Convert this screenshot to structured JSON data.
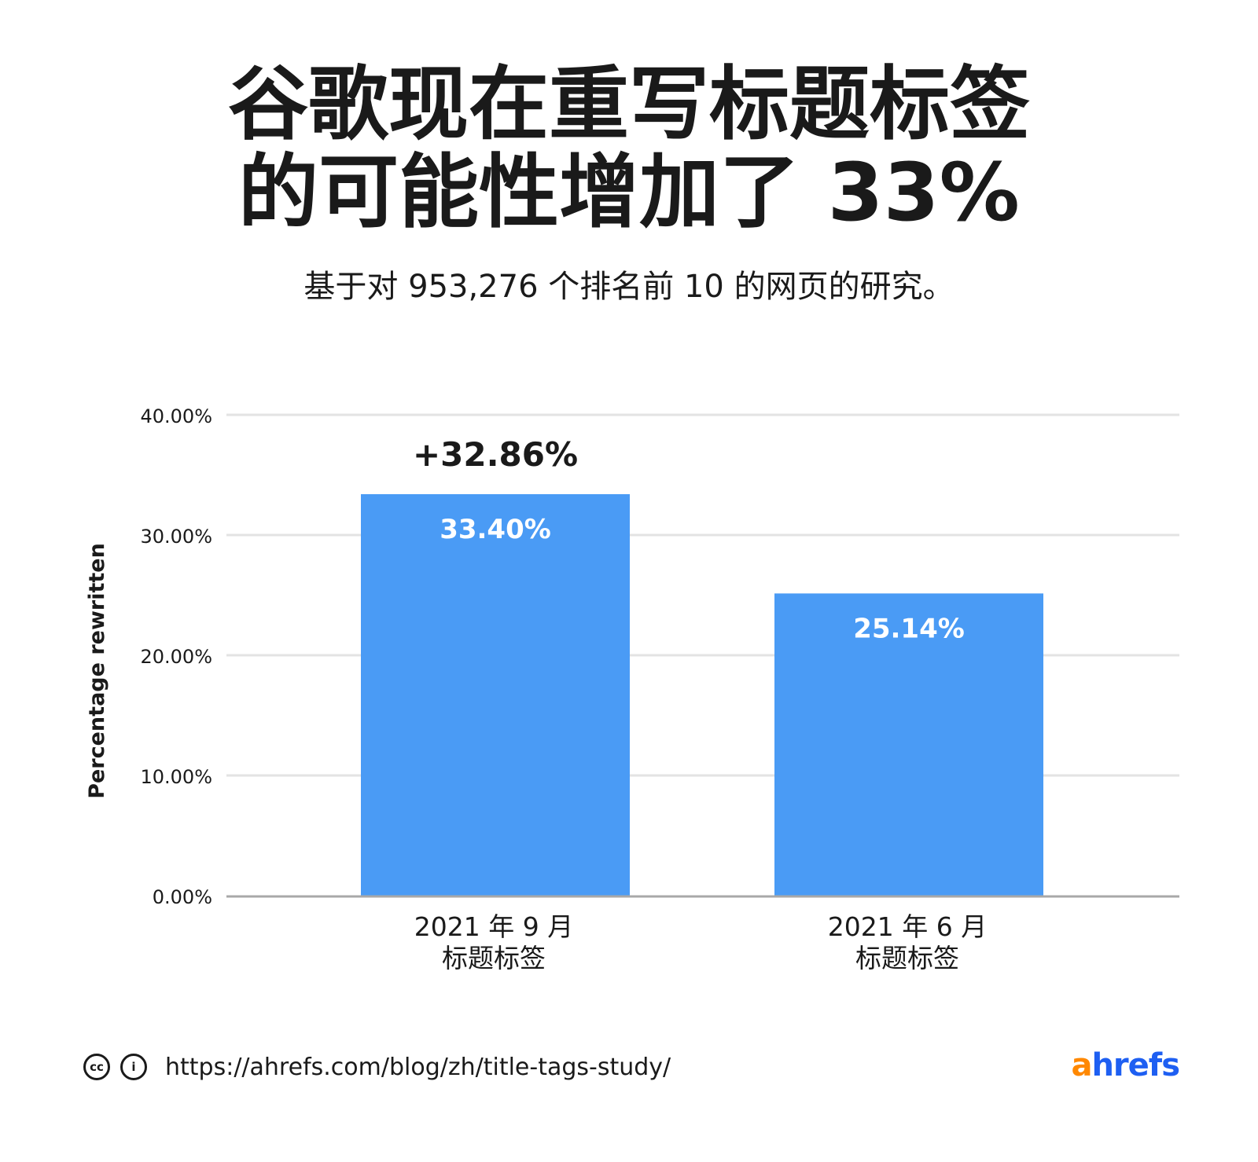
{
  "title_lines": [
    "谷歌现在重写标题标签",
    "的可能性增加了 33%"
  ],
  "subtitle": "基于对 953,276 个排名前 10 的网页的研究。",
  "colors": {
    "bar": "#4a9bf5",
    "grid": "#e3e3e3",
    "axis": "#a8a8a8",
    "text": "#1a1a1a",
    "logo_a": "#ff8800",
    "logo_rest": "#1e5ff2"
  },
  "chart_data": {
    "type": "bar",
    "categories": [
      {
        "line1": "2021 年 9 月",
        "line2": "标题标签"
      },
      {
        "line1": "2021 年 6 月",
        "line2": "标题标签"
      }
    ],
    "values": [
      33.4,
      25.14
    ],
    "value_labels": [
      "33.40%",
      "25.14%"
    ],
    "ylabel": "Percentage rewritten",
    "ylim": [
      0,
      40
    ],
    "yticks": [
      {
        "value": 0,
        "label": "0.00%"
      },
      {
        "value": 10,
        "label": "10.00%"
      },
      {
        "value": 20,
        "label": "20.00%"
      },
      {
        "value": 30,
        "label": "30.00%"
      },
      {
        "value": 40,
        "label": "40.00%"
      }
    ],
    "grid": true,
    "annotation": {
      "text": "+32.86%",
      "category_index": 0
    }
  },
  "footer": {
    "license_icons": [
      "cc-icon",
      "info-icon"
    ],
    "url": "https://ahrefs.com/blog/zh/title-tags-study/"
  },
  "logo": {
    "part1": "a",
    "part2": "hrefs"
  }
}
